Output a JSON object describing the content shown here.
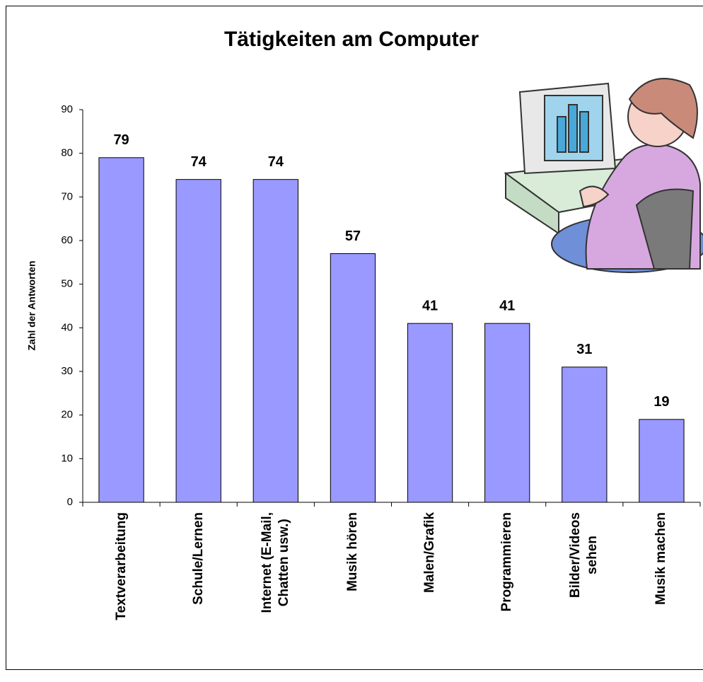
{
  "chart_data": {
    "type": "bar",
    "title": "Tätigkeiten am Computer",
    "y_label": "Zahl der Antworten",
    "categories": [
      "Textverarbeitung",
      "Schule/Lernen",
      "Internet (E-Mail,\nChatten usw.)",
      "Musik hören",
      "Malen/Grafik",
      "Programmieren",
      "Bilder/Videos\nsehen",
      "Musik machen"
    ],
    "values": [
      79,
      74,
      74,
      57,
      41,
      41,
      31,
      19
    ],
    "color": "#9999ff",
    "ylim": [
      0,
      90
    ],
    "yticks": [
      0,
      10,
      20,
      30,
      40,
      50,
      60,
      70,
      80,
      90
    ],
    "grid": false
  }
}
